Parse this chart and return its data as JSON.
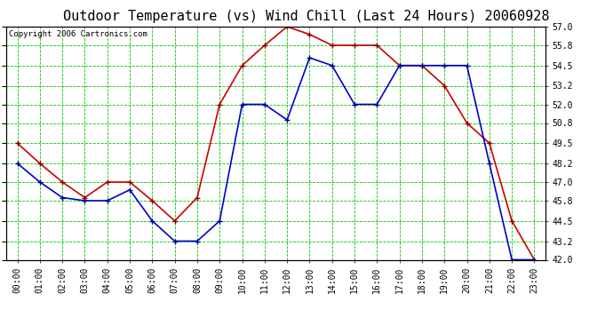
{
  "title": "Outdoor Temperature (vs) Wind Chill (Last 24 Hours) 20060928",
  "copyright": "Copyright 2006 Cartronics.com",
  "hours": [
    "00:00",
    "01:00",
    "02:00",
    "03:00",
    "04:00",
    "05:00",
    "06:00",
    "07:00",
    "08:00",
    "09:00",
    "10:00",
    "11:00",
    "12:00",
    "13:00",
    "14:00",
    "15:00",
    "16:00",
    "17:00",
    "18:00",
    "19:00",
    "20:00",
    "21:00",
    "22:00",
    "23:00"
  ],
  "temp": [
    49.5,
    48.2,
    47.0,
    46.0,
    47.0,
    47.0,
    45.8,
    44.5,
    46.0,
    52.0,
    54.5,
    55.8,
    57.0,
    56.5,
    55.8,
    55.8,
    55.8,
    54.5,
    54.5,
    53.2,
    50.8,
    49.5,
    44.5,
    42.0
  ],
  "windchill": [
    48.2,
    47.0,
    46.0,
    45.8,
    45.8,
    46.5,
    44.5,
    43.2,
    43.2,
    44.5,
    52.0,
    52.0,
    51.0,
    55.0,
    54.5,
    52.0,
    52.0,
    54.5,
    54.5,
    54.5,
    54.5,
    48.2,
    42.0,
    42.0
  ],
  "temp_color": "#cc0000",
  "windchill_color": "#0000cc",
  "bg_color": "#ffffff",
  "plot_bg_color": "#ffffff",
  "grid_color": "#00cc00",
  "yticks": [
    42.0,
    43.2,
    44.5,
    45.8,
    47.0,
    48.2,
    49.5,
    50.8,
    52.0,
    53.2,
    54.5,
    55.8,
    57.0
  ],
  "ylim_min": 42.0,
  "ylim_max": 57.0,
  "title_fontsize": 11,
  "tick_fontsize": 7,
  "copyright_fontsize": 6.5
}
